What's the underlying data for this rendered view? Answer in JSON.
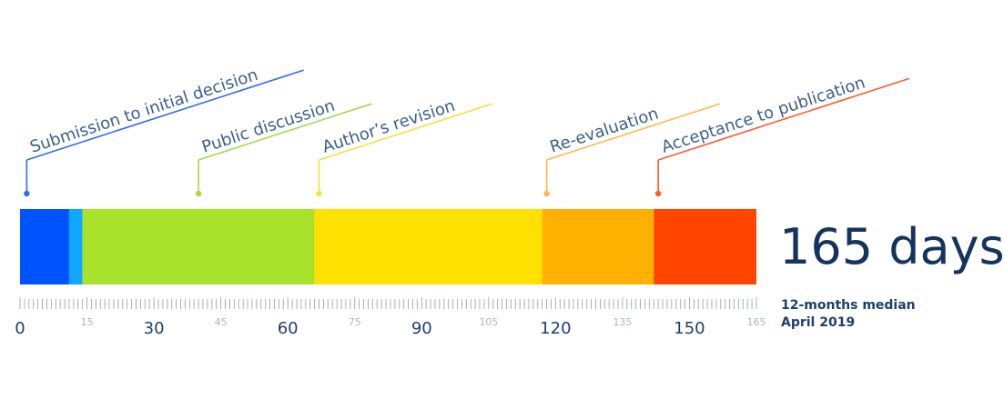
{
  "chart_data": {
    "type": "bar",
    "orientation": "horizontal-stacked-timeline",
    "phases": [
      {
        "name": "Submission to initial decision",
        "start": 0,
        "end": 11,
        "color": "#0054ff"
      },
      {
        "name": "",
        "start": 11,
        "end": 14,
        "color": "#10a8ff"
      },
      {
        "name": "Public discussion",
        "start": 14,
        "end": 66,
        "color": "#a8e22a"
      },
      {
        "name": "Author's revision",
        "start": 66,
        "end": 117,
        "color": "#ffe100"
      },
      {
        "name": "Re-evaluation",
        "start": 117,
        "end": 142,
        "color": "#ffb000"
      },
      {
        "name": "Acceptance to publication",
        "start": 142,
        "end": 165,
        "color": "#ff4500"
      }
    ],
    "labels": [
      {
        "text": "Submission to initial decision",
        "marker": 1.5,
        "color": "#2e6cf0"
      },
      {
        "text": "Public discussion",
        "marker": 40,
        "color": "#a8d84a"
      },
      {
        "text": "Author’s revision",
        "marker": 67,
        "color": "#f2e23a"
      },
      {
        "text": "Re-evaluation",
        "marker": 118,
        "color": "#ffb84a"
      },
      {
        "text": "Acceptance to publication",
        "marker": 143,
        "color": "#ff5a30"
      }
    ],
    "xlim": [
      0,
      165
    ],
    "major_ticks": [
      0,
      30,
      60,
      90,
      120,
      150
    ],
    "minor_ticks": [
      15,
      45,
      75,
      105,
      135,
      165
    ],
    "total_label": "165 days",
    "caption_line1": "12-months median",
    "caption_line2": "April 2019"
  }
}
